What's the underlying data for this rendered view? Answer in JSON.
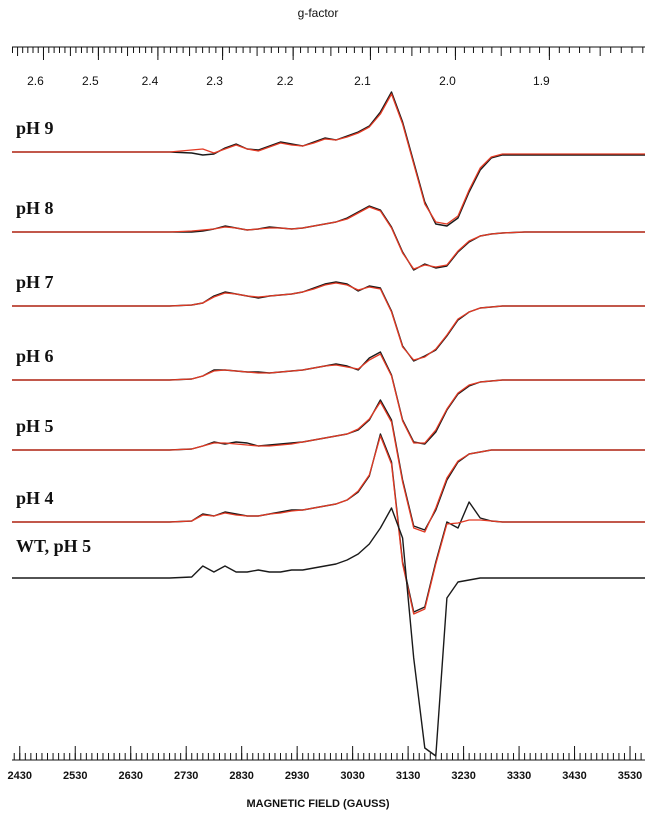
{
  "chart_data": {
    "type": "line",
    "x2_label": "g-factor",
    "x_label": "MAGNETIC FIELD (GAUSS)",
    "xlim": [
      2416,
      3557
    ],
    "xticks": [
      2430,
      2530,
      2630,
      2730,
      2830,
      2930,
      3030,
      3130,
      3230,
      3330,
      3430,
      3530
    ],
    "xminor": 10,
    "x2lim": [
      2.661,
      1.808
    ],
    "x2scale": "reciprocal",
    "x2ticks": [
      2.6,
      2.5,
      2.4,
      2.3,
      2.2,
      2.1,
      {
        "value": 2,
        "label": "2.0"
      },
      1.9
    ],
    "x2minor": 0.01,
    "experimental_color": "#1a1a1a",
    "simulation_color": "#e23a24",
    "x": [
      2416,
      2600,
      2700,
      2740,
      2760,
      2780,
      2800,
      2820,
      2840,
      2860,
      2880,
      2900,
      2920,
      2940,
      2960,
      2980,
      3000,
      3020,
      3040,
      3060,
      3080,
      3100,
      3120,
      3140,
      3160,
      3180,
      3200,
      3220,
      3240,
      3260,
      3280,
      3300,
      3340,
      3400,
      3500,
      3557
    ],
    "traces": [
      {
        "label": "pH 9",
        "experimental": [
          0,
          0,
          0,
          -1,
          -3,
          -2,
          4,
          8,
          3,
          2,
          6,
          10,
          8,
          6,
          10,
          14,
          12,
          16,
          20,
          26,
          40,
          60,
          30,
          -10,
          -50,
          -72,
          -74,
          -66,
          -40,
          -18,
          -6,
          -3,
          -3,
          -3,
          -3,
          -3
        ],
        "simulation": [
          0,
          0,
          0,
          2,
          3,
          -1,
          3,
          7,
          3,
          1,
          5,
          9,
          7,
          6,
          9,
          13,
          12,
          15,
          19,
          25,
          38,
          58,
          28,
          -12,
          -52,
          -70,
          -72,
          -64,
          -38,
          -16,
          -5,
          -2,
          -2,
          -2,
          -2,
          -2
        ]
      },
      {
        "label": "pH 8",
        "experimental": [
          0,
          0,
          0,
          0,
          1,
          3,
          6,
          4,
          2,
          3,
          5,
          4,
          3,
          4,
          6,
          8,
          10,
          14,
          20,
          26,
          22,
          5,
          -20,
          -38,
          -32,
          -36,
          -34,
          -20,
          -10,
          -4,
          -2,
          -1,
          0,
          0,
          0,
          0
        ],
        "simulation": [
          0,
          0,
          0,
          1,
          2,
          3,
          5,
          4,
          2,
          3,
          4,
          4,
          3,
          4,
          6,
          8,
          10,
          13,
          19,
          25,
          21,
          4,
          -21,
          -37,
          -33,
          -35,
          -33,
          -19,
          -9,
          -4,
          -2,
          -1,
          0,
          0,
          0,
          0
        ]
      },
      {
        "label": "pH 7",
        "experimental": [
          0,
          0,
          0,
          1,
          3,
          10,
          14,
          12,
          10,
          8,
          10,
          11,
          12,
          14,
          18,
          22,
          24,
          22,
          15,
          20,
          18,
          -5,
          -40,
          -55,
          -50,
          -44,
          -30,
          -14,
          -6,
          -2,
          -1,
          0,
          0,
          0,
          0,
          0
        ],
        "simulation": [
          0,
          0,
          0,
          1,
          3,
          9,
          13,
          12,
          10,
          9,
          10,
          11,
          12,
          14,
          17,
          21,
          23,
          21,
          16,
          19,
          17,
          -6,
          -41,
          -54,
          -51,
          -43,
          -29,
          -13,
          -6,
          -2,
          -1,
          0,
          0,
          0,
          0,
          0
        ]
      },
      {
        "label": "pH 6",
        "experimental": [
          0,
          0,
          0,
          1,
          4,
          10,
          10,
          9,
          8,
          8,
          7,
          8,
          9,
          10,
          12,
          14,
          16,
          14,
          10,
          22,
          28,
          5,
          -40,
          -62,
          -64,
          -52,
          -30,
          -14,
          -6,
          -2,
          -1,
          0,
          0,
          0,
          0,
          0
        ],
        "simulation": [
          0,
          0,
          0,
          1,
          4,
          9,
          10,
          9,
          8,
          7,
          7,
          8,
          9,
          10,
          12,
          14,
          15,
          13,
          11,
          20,
          26,
          4,
          -41,
          -63,
          -63,
          -50,
          -29,
          -13,
          -5,
          -2,
          -1,
          0,
          0,
          0,
          0,
          0
        ]
      },
      {
        "label": "pH 5",
        "experimental": [
          0,
          0,
          0,
          1,
          4,
          8,
          6,
          8,
          7,
          4,
          5,
          6,
          7,
          8,
          10,
          12,
          14,
          16,
          20,
          30,
          50,
          30,
          -30,
          -76,
          -80,
          -60,
          -30,
          -12,
          -4,
          -2,
          0,
          0,
          0,
          0,
          0,
          0
        ],
        "simulation": [
          0,
          0,
          0,
          1,
          4,
          7,
          7,
          6,
          5,
          4,
          4,
          5,
          6,
          8,
          10,
          12,
          14,
          16,
          21,
          31,
          48,
          28,
          -32,
          -78,
          -82,
          -58,
          -28,
          -11,
          -4,
          -2,
          0,
          0,
          0,
          0,
          0,
          0
        ]
      },
      {
        "label": "pH 4",
        "experimental": [
          0,
          0,
          0,
          1,
          8,
          6,
          10,
          8,
          6,
          6,
          8,
          10,
          12,
          12,
          14,
          16,
          18,
          22,
          30,
          46,
          88,
          60,
          -40,
          -90,
          -85,
          -40,
          0,
          -6,
          20,
          4,
          1,
          0,
          0,
          0,
          0,
          0
        ],
        "simulation": [
          0,
          0,
          0,
          1,
          7,
          6,
          9,
          7,
          6,
          6,
          8,
          9,
          11,
          12,
          14,
          16,
          18,
          22,
          31,
          47,
          86,
          58,
          -42,
          -92,
          -87,
          -42,
          -2,
          -1,
          2,
          2,
          1,
          0,
          0,
          0,
          0,
          0
        ]
      },
      {
        "label": "WT, pH 5",
        "experimental": [
          0,
          0,
          0,
          1,
          12,
          6,
          12,
          6,
          6,
          8,
          6,
          6,
          8,
          8,
          10,
          12,
          14,
          18,
          24,
          34,
          50,
          70,
          40,
          -80,
          -170,
          -178,
          -20,
          -4,
          -2,
          0,
          0,
          0,
          0,
          0,
          0,
          0
        ]
      }
    ]
  }
}
